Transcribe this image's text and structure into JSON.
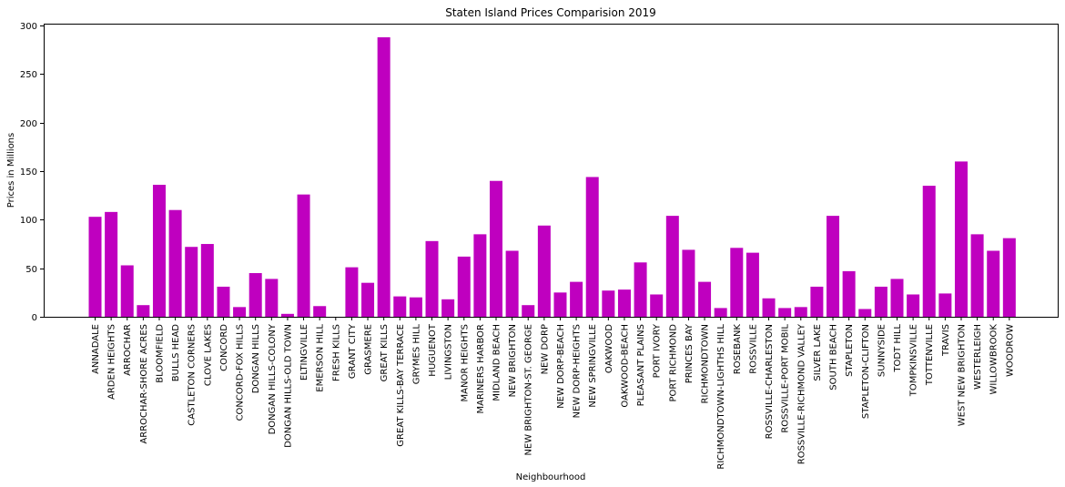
{
  "chart_data": {
    "type": "bar",
    "title": "Staten Island Prices Comparision 2019",
    "xlabel": "Neighbourhood",
    "ylabel": "Prices in Millions",
    "ylim": [
      0,
      302
    ],
    "yticks": [
      0,
      50,
      100,
      150,
      200,
      250,
      300
    ],
    "bar_color": "#bf00bf",
    "grid": false,
    "categories": [
      "ANNADALE",
      "ARDEN HEIGHTS",
      "ARROCHAR",
      "ARROCHAR-SHORE ACRES",
      "BLOOMFIELD",
      "BULLS HEAD",
      "CASTLETON CORNERS",
      "CLOVE LAKES",
      "CONCORD",
      "CONCORD-FOX HILLS",
      "DONGAN HILLS",
      "DONGAN HILLS-COLONY",
      "DONGAN HILLS-OLD TOWN",
      "ELTINGVILLE",
      "EMERSON HILL",
      "FRESH KILLS",
      "GRANT CITY",
      "GRASMERE",
      "GREAT KILLS",
      "GREAT KILLS-BAY TERRACE",
      "GRYMES HILL",
      "HUGUENOT",
      "LIVINGSTON",
      "MANOR HEIGHTS",
      "MARINERS HARBOR",
      "MIDLAND BEACH",
      "NEW BRIGHTON",
      "NEW BRIGHTON-ST. GEORGE",
      "NEW DORP",
      "NEW DORP-BEACH",
      "NEW DORP-HEIGHTS",
      "NEW SPRINGVILLE",
      "OAKWOOD",
      "OAKWOOD-BEACH",
      "PLEASANT PLAINS",
      "PORT IVORY",
      "PORT RICHMOND",
      "PRINCES BAY",
      "RICHMONDTOWN",
      "RICHMONDTOWN-LIGHTHS HILL",
      "ROSEBANK",
      "ROSSVILLE",
      "ROSSVILLE-CHARLESTON",
      "ROSSVILLE-PORT MOBIL",
      "ROSSVILLE-RICHMOND VALLEY",
      "SILVER LAKE",
      "SOUTH BEACH",
      "STAPLETON",
      "STAPLETON-CLIFTON",
      "SUNNYSIDE",
      "TODT HILL",
      "TOMPKINSVILLE",
      "TOTTENVILLE",
      "TRAVIS",
      "WEST NEW BRIGHTON",
      "WESTERLEIGH",
      "WILLOWBROOK",
      "WOODROW"
    ],
    "values": [
      103,
      108,
      53,
      12,
      136,
      110,
      72,
      75,
      31,
      10,
      45,
      39,
      3,
      126,
      11,
      0,
      51,
      35,
      288,
      21,
      20,
      78,
      18,
      62,
      85,
      140,
      68,
      12,
      94,
      25,
      36,
      144,
      27,
      28,
      56,
      23,
      104,
      69,
      36,
      9,
      71,
      66,
      19,
      9,
      10,
      31,
      104,
      47,
      8,
      31,
      39,
      23,
      135,
      24,
      160,
      85,
      68,
      81
    ]
  }
}
